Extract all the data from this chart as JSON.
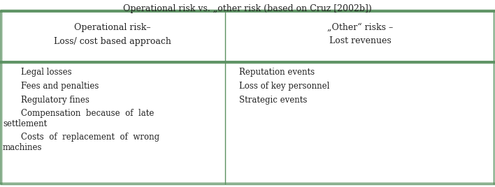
{
  "title": "Operational risk vs. „other risk (based on Cruz [2002b])",
  "col1_header_line1": "Operational risk–",
  "col1_header_line2": "Loss/ cost based approach",
  "col2_header_line1": "„Other“ risks –",
  "col2_header_line2": "Lost revenues",
  "col1_items": [
    "Legal losses",
    "Fees and penalties",
    "Regulatory fines",
    "Compensation  because  of  late\nsettlement",
    "Costs  of  replacement  of  wrong\nmachines"
  ],
  "col2_items": [
    "Reputation events",
    "Loss of key personnel",
    "Strategic events"
  ],
  "bg_color": "#ffffff",
  "line_color": "#5a9060",
  "header_font_size": 9.0,
  "body_font_size": 8.5,
  "title_font_size": 9.0,
  "col_split": 0.455
}
